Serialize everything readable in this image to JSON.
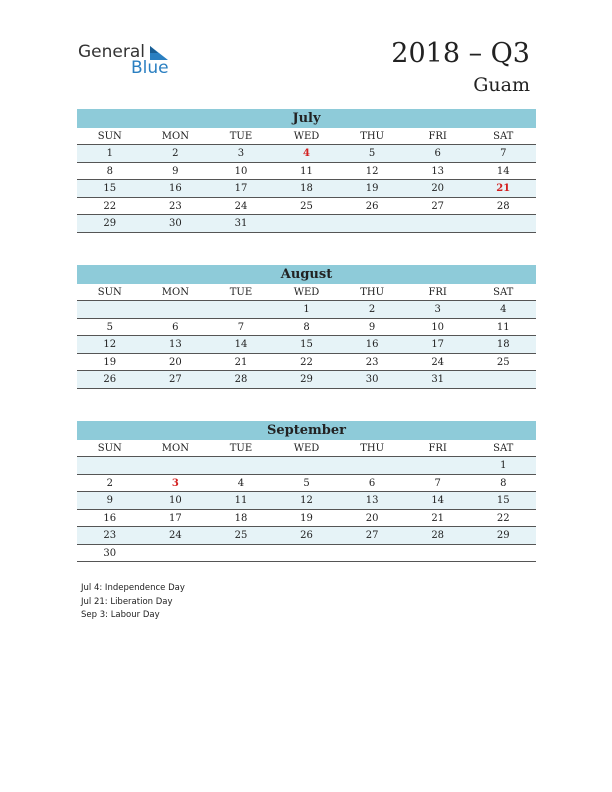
{
  "header": {
    "logo_top": "General",
    "logo_bottom": "Blue",
    "title": "2018 – Q3",
    "subtitle": "Guam"
  },
  "weekdays": [
    "SUN",
    "MON",
    "TUE",
    "WED",
    "THU",
    "FRI",
    "SAT"
  ],
  "months": [
    {
      "name": "July",
      "weeks": [
        [
          1,
          2,
          3,
          {
            "day": 4,
            "holiday": true
          },
          5,
          6,
          7
        ],
        [
          8,
          9,
          10,
          11,
          12,
          13,
          14
        ],
        [
          15,
          16,
          17,
          18,
          19,
          20,
          {
            "day": 21,
            "holiday": true
          }
        ],
        [
          22,
          23,
          24,
          25,
          26,
          27,
          28
        ],
        [
          29,
          30,
          31,
          null,
          null,
          null,
          null
        ]
      ]
    },
    {
      "name": "August",
      "weeks": [
        [
          null,
          null,
          null,
          1,
          2,
          3,
          4
        ],
        [
          5,
          6,
          7,
          8,
          9,
          10,
          11
        ],
        [
          12,
          13,
          14,
          15,
          16,
          17,
          18
        ],
        [
          19,
          20,
          21,
          22,
          23,
          24,
          25
        ],
        [
          26,
          27,
          28,
          29,
          30,
          31,
          null
        ]
      ]
    },
    {
      "name": "September",
      "weeks": [
        [
          null,
          null,
          null,
          null,
          null,
          null,
          1
        ],
        [
          2,
          {
            "day": 3,
            "holiday": true
          },
          4,
          5,
          6,
          7,
          8
        ],
        [
          9,
          10,
          11,
          12,
          13,
          14,
          15
        ],
        [
          16,
          17,
          18,
          19,
          20,
          21,
          22
        ],
        [
          23,
          24,
          25,
          26,
          27,
          28,
          29
        ],
        [
          30,
          null,
          null,
          null,
          null,
          null,
          null
        ]
      ]
    }
  ],
  "notes": [
    "Jul 4: Independence Day",
    "Jul 21: Liberation Day",
    "Sep 3: Labour Day"
  ]
}
